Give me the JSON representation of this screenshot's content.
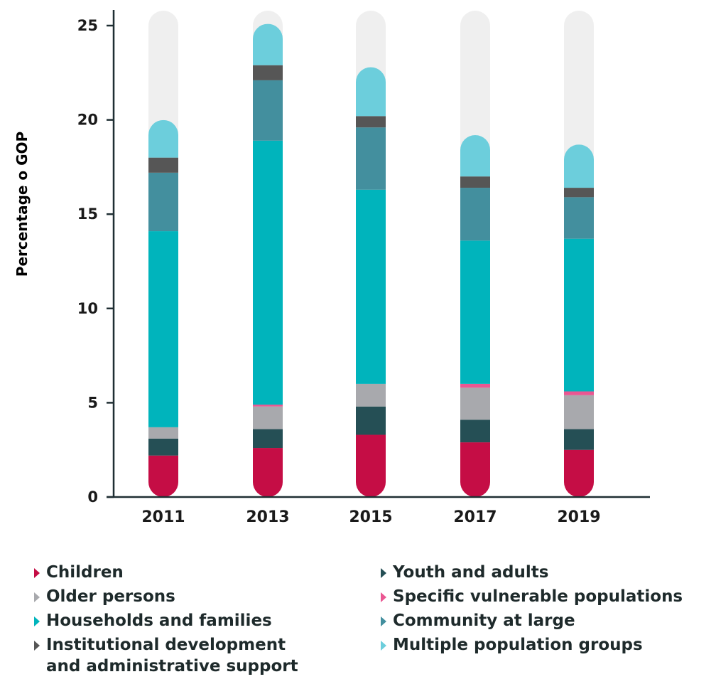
{
  "chart_data": {
    "type": "bar",
    "stacked": true,
    "ylabel": "Percentage o GOP",
    "xlabel": "",
    "ylim": [
      0,
      25
    ],
    "yticks": [
      0,
      5,
      10,
      15,
      20,
      25
    ],
    "categories": [
      "2011",
      "2013",
      "2015",
      "2017",
      "2019"
    ],
    "series": [
      {
        "name": "Children",
        "color": "#c50d45",
        "values": [
          2.2,
          2.6,
          3.3,
          2.9,
          2.5
        ]
      },
      {
        "name": "Youth and adults",
        "color": "#254f55",
        "values": [
          0.9,
          1.0,
          1.5,
          1.2,
          1.1
        ]
      },
      {
        "name": "Older persons",
        "color": "#a8a9ad",
        "values": [
          0.6,
          1.2,
          1.2,
          1.7,
          1.8
        ]
      },
      {
        "name": "Specific vulnerable populations",
        "color": "#ea5792",
        "values": [
          0.0,
          0.1,
          0.0,
          0.2,
          0.2
        ]
      },
      {
        "name": "Households and families",
        "color": "#00b4bc",
        "values": [
          10.4,
          14.0,
          10.3,
          7.6,
          8.1
        ]
      },
      {
        "name": "Community at large",
        "color": "#438f9e",
        "values": [
          3.1,
          3.2,
          3.3,
          2.8,
          2.2
        ]
      },
      {
        "name": "Institutional development\nand administrative support",
        "color": "#565656",
        "values": [
          0.8,
          0.8,
          0.6,
          0.6,
          0.5
        ]
      },
      {
        "name": "Multiple population groups",
        "color": "#6ccedc",
        "values": [
          1.2,
          1.4,
          1.8,
          1.4,
          1.5
        ]
      }
    ],
    "background_track_max": 25,
    "track_color": "#efefef",
    "legend_placement": "bottom",
    "grid": false
  }
}
